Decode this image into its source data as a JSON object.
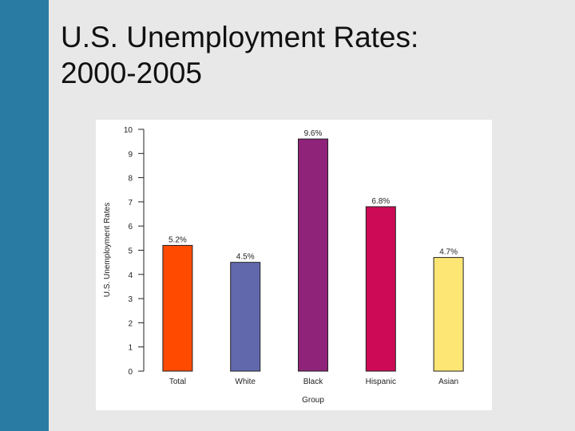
{
  "slide": {
    "title_line1": "U.S. Unemployment Rates:",
    "title_line2": "2000-2005",
    "accent_color": "#2a7ba4",
    "background_color": "#e8e8e8"
  },
  "chart_data": {
    "type": "bar",
    "title": "",
    "xlabel": "Group",
    "ylabel": "U.S. Unemployment Rates",
    "categories": [
      "Total",
      "White",
      "Black",
      "Hispanic",
      "Asian"
    ],
    "values": [
      5.2,
      4.5,
      9.6,
      6.8,
      4.7
    ],
    "data_labels": [
      "5.2%",
      "4.5%",
      "9.6%",
      "6.8%",
      "4.7%"
    ],
    "colors": [
      "#ff4a00",
      "#6168ac",
      "#8e2379",
      "#cc0a56",
      "#fee675"
    ],
    "ylim": [
      0,
      10
    ],
    "yticks": [
      0,
      1,
      2,
      3,
      4,
      5,
      6,
      7,
      8,
      9,
      10
    ],
    "grid": false,
    "legend": "none"
  }
}
